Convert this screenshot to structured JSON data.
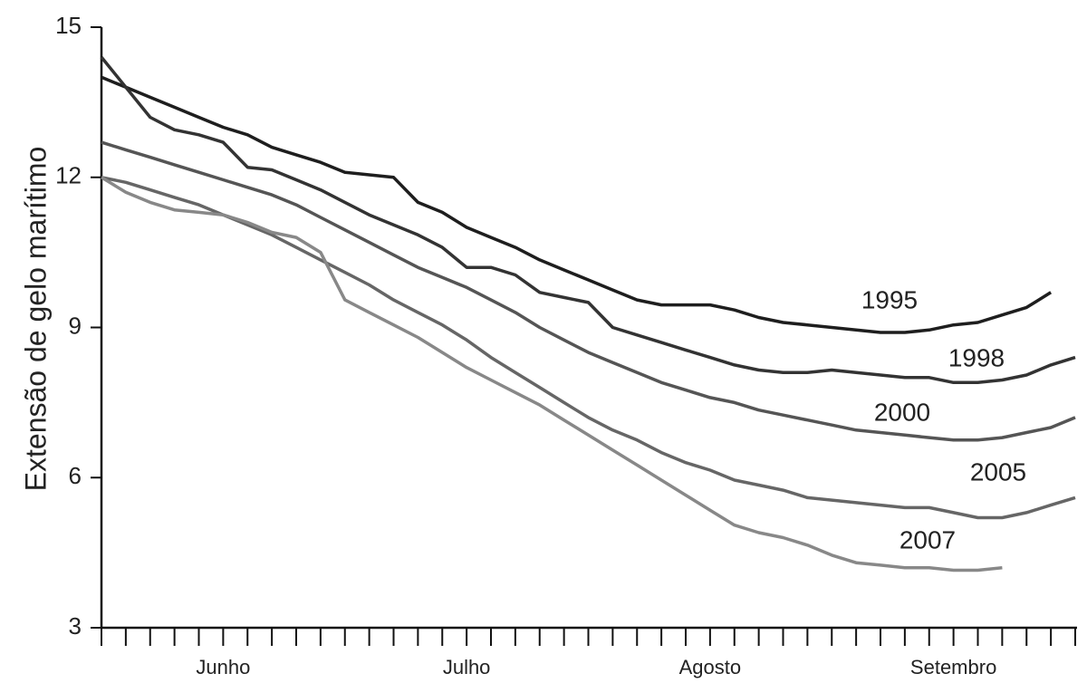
{
  "chart_data": {
    "type": "line",
    "y_label": "Extensão de gelo marítimo",
    "categories": [
      null,
      null,
      null,
      null,
      null,
      "Junho",
      null,
      null,
      null,
      null,
      null,
      null,
      null,
      null,
      null,
      "Julho",
      null,
      null,
      null,
      null,
      null,
      null,
      null,
      null,
      null,
      "Agosto",
      null,
      null,
      null,
      null,
      null,
      null,
      null,
      null,
      null,
      "Setembro",
      null,
      null,
      null,
      null,
      null
    ],
    "series": [
      {
        "name": "1995",
        "color": "#1e1e1e",
        "values": [
          14.0,
          13.8,
          13.6,
          13.4,
          13.2,
          13.0,
          12.85,
          12.6,
          12.45,
          12.3,
          12.1,
          12.05,
          12.0,
          11.5,
          11.3,
          11.0,
          10.8,
          10.6,
          10.35,
          10.15,
          9.95,
          9.75,
          9.55,
          9.45,
          9.45,
          9.45,
          9.35,
          9.2,
          9.1,
          9.05,
          9.0,
          8.95,
          8.9,
          8.9,
          8.95,
          9.05,
          9.1,
          9.25,
          9.4,
          9.7,
          null
        ]
      },
      {
        "name": "1998",
        "color": "#333333",
        "values": [
          14.4,
          13.8,
          13.2,
          12.95,
          12.85,
          12.7,
          12.2,
          12.15,
          11.95,
          11.75,
          11.5,
          11.25,
          11.05,
          10.85,
          10.6,
          10.2,
          10.2,
          10.05,
          9.7,
          9.6,
          9.5,
          9.0,
          8.85,
          8.7,
          8.55,
          8.4,
          8.25,
          8.15,
          8.1,
          8.1,
          8.15,
          8.1,
          8.05,
          8.0,
          8.0,
          7.9,
          7.9,
          7.95,
          8.05,
          8.25,
          8.4
        ]
      },
      {
        "name": "2000",
        "color": "#555555",
        "values": [
          12.7,
          12.55,
          12.4,
          12.25,
          12.1,
          11.95,
          11.8,
          11.65,
          11.45,
          11.2,
          10.95,
          10.7,
          10.45,
          10.2,
          10.0,
          9.8,
          9.55,
          9.3,
          9.0,
          8.75,
          8.5,
          8.3,
          8.1,
          7.9,
          7.75,
          7.6,
          7.5,
          7.35,
          7.25,
          7.15,
          7.05,
          6.95,
          6.9,
          6.85,
          6.8,
          6.75,
          6.75,
          6.8,
          6.9,
          7.0,
          7.2
        ]
      },
      {
        "name": "2005",
        "color": "#666666",
        "values": [
          12.0,
          11.9,
          11.75,
          11.6,
          11.45,
          11.25,
          11.05,
          10.85,
          10.6,
          10.35,
          10.1,
          9.85,
          9.55,
          9.3,
          9.05,
          8.75,
          8.4,
          8.1,
          7.8,
          7.5,
          7.2,
          6.95,
          6.75,
          6.5,
          6.3,
          6.15,
          5.95,
          5.85,
          5.75,
          5.6,
          5.55,
          5.5,
          5.45,
          5.4,
          5.4,
          5.3,
          5.2,
          5.2,
          5.3,
          5.45,
          5.6
        ]
      },
      {
        "name": "2007",
        "color": "#888888",
        "values": [
          12.0,
          11.7,
          11.5,
          11.35,
          11.3,
          11.25,
          11.1,
          10.9,
          10.8,
          10.5,
          9.55,
          9.3,
          9.05,
          8.8,
          8.5,
          8.2,
          7.95,
          7.7,
          7.45,
          7.15,
          6.85,
          6.55,
          6.25,
          5.95,
          5.65,
          5.35,
          5.05,
          4.9,
          4.8,
          4.65,
          4.45,
          4.3,
          4.25,
          4.2,
          4.2,
          4.15,
          4.15,
          4.2,
          null,
          null,
          null
        ]
      }
    ],
    "ylim": [
      3,
      15
    ],
    "yticks": [
      3,
      6,
      9,
      12,
      15
    ],
    "grid": false
  }
}
